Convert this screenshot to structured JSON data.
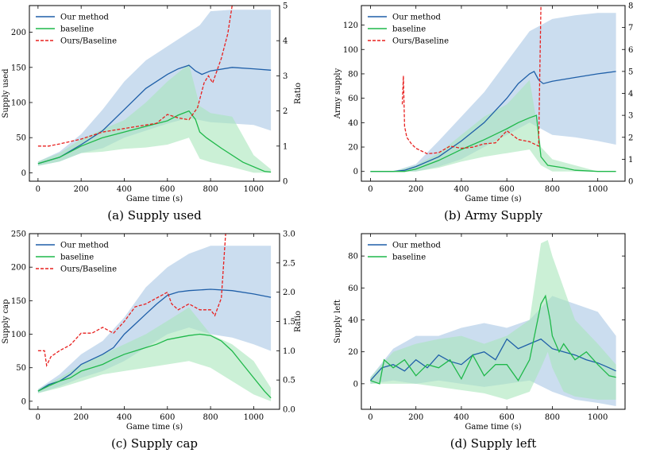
{
  "colors": {
    "ours": "#1f5fa8",
    "baseline": "#1fb84a",
    "ratio": "#e8201f",
    "ours_band": "#a9c6e4",
    "baseline_band": "#a9e6bb"
  },
  "chart_data": [
    {
      "type": "line",
      "caption": "(a) Supply used",
      "xlabel": "Game time (s)",
      "ylabel": "Supply used",
      "ylabel2": "Ratio",
      "xlim": [
        -40,
        1120
      ],
      "ylim": [
        -12,
        238
      ],
      "ylim2": [
        0,
        5
      ],
      "xticks": [
        "0",
        "200",
        "400",
        "600",
        "800",
        "1000"
      ],
      "yticks": [
        "0",
        "50",
        "100",
        "150",
        "200"
      ],
      "yticks2": [
        "0",
        "1",
        "2",
        "3",
        "4",
        "5"
      ],
      "legend": [
        "Our method",
        "baseline",
        "Ours/Baseline"
      ],
      "series": [
        {
          "name": "Our method",
          "axis": "left",
          "x": [
            0,
            100,
            200,
            300,
            400,
            500,
            600,
            650,
            700,
            730,
            760,
            800,
            900,
            1000,
            1080
          ],
          "y": [
            13,
            22,
            40,
            60,
            90,
            120,
            140,
            148,
            153,
            145,
            140,
            145,
            150,
            148,
            146
          ]
        },
        {
          "name": "baseline",
          "axis": "left",
          "x": [
            0,
            100,
            200,
            300,
            400,
            500,
            600,
            650,
            700,
            730,
            750,
            780,
            850,
            950,
            1050,
            1080
          ],
          "y": [
            13,
            22,
            38,
            50,
            58,
            66,
            74,
            82,
            88,
            76,
            58,
            50,
            35,
            15,
            2,
            1
          ]
        },
        {
          "name": "Ours/Baseline",
          "axis": "right",
          "x": [
            0,
            50,
            100,
            200,
            300,
            400,
            500,
            550,
            600,
            650,
            700,
            740,
            770,
            790,
            810,
            850,
            880,
            900
          ],
          "y": [
            1.0,
            1.0,
            1.06,
            1.2,
            1.4,
            1.5,
            1.6,
            1.65,
            1.9,
            1.8,
            1.75,
            2.1,
            2.8,
            3.0,
            2.8,
            3.5,
            4.2,
            5.0
          ]
        }
      ],
      "bands": [
        {
          "name": "Our method",
          "x": [
            0,
            100,
            200,
            300,
            400,
            500,
            600,
            700,
            750,
            800,
            900,
            1000,
            1080
          ],
          "low": [
            10,
            16,
            28,
            35,
            50,
            60,
            70,
            78,
            75,
            72,
            70,
            68,
            60
          ],
          "high": [
            16,
            30,
            55,
            90,
            130,
            160,
            180,
            200,
            210,
            230,
            232,
            232,
            232
          ]
        },
        {
          "name": "baseline",
          "x": [
            0,
            100,
            200,
            300,
            400,
            500,
            600,
            700,
            750,
            800,
            900,
            1000,
            1080
          ],
          "low": [
            10,
            16,
            28,
            30,
            34,
            36,
            40,
            50,
            20,
            15,
            8,
            0,
            0
          ],
          "high": [
            16,
            28,
            48,
            62,
            75,
            100,
            130,
            155,
            95,
            85,
            80,
            25,
            5
          ]
        }
      ]
    },
    {
      "type": "line",
      "caption": "(b) Army Supply",
      "xlabel": "Game time (s)",
      "ylabel": "Army supply",
      "ylabel2": "",
      "xlim": [
        -40,
        1120
      ],
      "ylim": [
        -8,
        136
      ],
      "ylim2": [
        0,
        8
      ],
      "xticks": [
        "0",
        "200",
        "400",
        "600",
        "800",
        "1000"
      ],
      "yticks": [
        "0",
        "20",
        "40",
        "60",
        "80",
        "100",
        "120"
      ],
      "yticks2": [
        "0",
        "1",
        "2",
        "3",
        "4",
        "5",
        "6",
        "7",
        "8"
      ],
      "legend": [
        "Our method",
        "baseline",
        "Ours/Baseline"
      ],
      "series": [
        {
          "name": "Our method",
          "axis": "left",
          "x": [
            0,
            100,
            150,
            200,
            300,
            400,
            500,
            600,
            650,
            700,
            720,
            740,
            760,
            800,
            900,
            1000,
            1080
          ],
          "y": [
            0,
            0,
            1,
            4,
            12,
            25,
            40,
            60,
            72,
            80,
            82,
            75,
            72,
            74,
            77,
            80,
            82
          ]
        },
        {
          "name": "baseline",
          "axis": "left",
          "x": [
            0,
            100,
            150,
            200,
            300,
            400,
            500,
            600,
            650,
            700,
            730,
            750,
            780,
            850,
            900,
            1000,
            1080
          ],
          "y": [
            0,
            0,
            0,
            2,
            9,
            18,
            26,
            35,
            40,
            44,
            46,
            12,
            5,
            3,
            1,
            0,
            0
          ]
        },
        {
          "name": "Ours/Baseline",
          "axis": "right",
          "x": [
            140,
            145,
            150,
            160,
            180,
            200,
            250,
            300,
            350,
            400,
            450,
            500,
            550,
            600,
            650,
            700,
            740,
            745,
            750
          ],
          "y": [
            3.5,
            4.8,
            2.5,
            2.0,
            1.7,
            1.5,
            1.25,
            1.3,
            1.6,
            1.5,
            1.55,
            1.7,
            1.75,
            2.3,
            1.9,
            1.8,
            1.6,
            5.0,
            8.0
          ]
        }
      ],
      "bands": [
        {
          "name": "Our method",
          "x": [
            0,
            100,
            200,
            300,
            400,
            500,
            600,
            700,
            750,
            800,
            900,
            1000,
            1080
          ],
          "low": [
            0,
            0,
            0,
            4,
            10,
            20,
            30,
            40,
            35,
            30,
            28,
            25,
            22
          ],
          "high": [
            0,
            0,
            6,
            25,
            45,
            65,
            90,
            115,
            120,
            125,
            128,
            130,
            130
          ]
        },
        {
          "name": "baseline",
          "x": [
            0,
            100,
            200,
            300,
            400,
            500,
            600,
            700,
            750,
            800,
            900,
            1000,
            1080
          ],
          "low": [
            0,
            0,
            0,
            3,
            8,
            12,
            15,
            18,
            5,
            0,
            0,
            0,
            0
          ],
          "high": [
            0,
            0,
            5,
            15,
            30,
            45,
            55,
            75,
            20,
            10,
            5,
            0,
            0
          ]
        }
      ]
    },
    {
      "type": "line",
      "caption": "(c) Supply cap",
      "xlabel": "Game time (s)",
      "ylabel": "Supply cap",
      "ylabel2": "Ratio",
      "xlim": [
        -40,
        1120
      ],
      "ylim": [
        -12,
        250
      ],
      "ylim2": [
        0,
        3
      ],
      "xticks": [
        "0",
        "200",
        "400",
        "600",
        "800",
        "1000"
      ],
      "yticks": [
        "0",
        "50",
        "100",
        "150",
        "200",
        "250"
      ],
      "yticks2": [
        "0.0",
        "0.5",
        "1.0",
        "1.5",
        "2.0",
        "2.5",
        "3.0"
      ],
      "legend": [
        "Our method",
        "baseline",
        "Ours/Baseline"
      ],
      "series": [
        {
          "name": "Our method",
          "axis": "left",
          "x": [
            0,
            50,
            100,
            150,
            200,
            300,
            350,
            400,
            450,
            500,
            550,
            600,
            650,
            700,
            800,
            900,
            1000,
            1080
          ],
          "y": [
            15,
            25,
            30,
            40,
            55,
            70,
            80,
            100,
            115,
            130,
            145,
            158,
            163,
            165,
            167,
            165,
            160,
            155
          ]
        },
        {
          "name": "baseline",
          "axis": "left",
          "x": [
            0,
            50,
            100,
            150,
            200,
            250,
            300,
            350,
            400,
            450,
            500,
            550,
            600,
            650,
            700,
            750,
            800,
            850,
            900,
            950,
            1000,
            1050,
            1080
          ],
          "y": [
            15,
            23,
            30,
            35,
            45,
            50,
            55,
            63,
            70,
            75,
            80,
            85,
            92,
            95,
            98,
            100,
            98,
            90,
            75,
            55,
            35,
            15,
            5
          ]
        },
        {
          "name": "Ours/Baseline",
          "axis": "right",
          "x": [
            0,
            30,
            40,
            60,
            100,
            150,
            200,
            250,
            300,
            350,
            400,
            450,
            500,
            550,
            600,
            620,
            650,
            700,
            750,
            800,
            820,
            850,
            870
          ],
          "y": [
            1.0,
            1.0,
            0.75,
            0.9,
            1.0,
            1.1,
            1.3,
            1.3,
            1.4,
            1.3,
            1.5,
            1.75,
            1.8,
            1.9,
            2.0,
            1.8,
            1.7,
            1.8,
            1.7,
            1.7,
            1.6,
            1.9,
            3.0
          ]
        }
      ],
      "bands": [
        {
          "name": "Our method",
          "x": [
            0,
            100,
            200,
            300,
            400,
            500,
            600,
            700,
            800,
            900,
            1000,
            1080
          ],
          "low": [
            12,
            22,
            35,
            45,
            60,
            80,
            100,
            110,
            100,
            95,
            85,
            75
          ],
          "high": [
            18,
            40,
            70,
            90,
            125,
            170,
            200,
            220,
            232,
            232,
            232,
            232
          ]
        },
        {
          "name": "baseline",
          "x": [
            0,
            100,
            200,
            300,
            400,
            500,
            600,
            700,
            800,
            900,
            1000,
            1080
          ],
          "low": [
            12,
            20,
            30,
            40,
            45,
            50,
            55,
            60,
            50,
            30,
            10,
            0
          ],
          "high": [
            18,
            35,
            55,
            70,
            85,
            100,
            120,
            140,
            100,
            85,
            60,
            20
          ]
        }
      ]
    },
    {
      "type": "line",
      "caption": "(d) Supply left",
      "xlabel": "Game time (s)",
      "ylabel": "Supply left",
      "ylabel2": "",
      "xlim": [
        -40,
        1120
      ],
      "ylim": [
        -16,
        94
      ],
      "xticks": [
        "0",
        "200",
        "400",
        "600",
        "800",
        "1000"
      ],
      "yticks": [
        "0",
        "20",
        "40",
        "60",
        "80"
      ],
      "legend": [
        "Our method",
        "baseline"
      ],
      "series": [
        {
          "name": "Our method",
          "axis": "left",
          "x": [
            0,
            50,
            100,
            150,
            200,
            250,
            300,
            350,
            400,
            450,
            500,
            550,
            600,
            650,
            700,
            750,
            800,
            850,
            900,
            950,
            1000,
            1050,
            1080
          ],
          "y": [
            2,
            10,
            12,
            8,
            15,
            10,
            18,
            14,
            12,
            18,
            20,
            15,
            28,
            22,
            25,
            28,
            22,
            20,
            18,
            15,
            13,
            10,
            8
          ]
        },
        {
          "name": "baseline",
          "axis": "left",
          "x": [
            0,
            40,
            60,
            100,
            150,
            200,
            250,
            300,
            350,
            400,
            450,
            500,
            550,
            600,
            650,
            700,
            750,
            770,
            790,
            800,
            830,
            850,
            900,
            950,
            1000,
            1050,
            1080
          ],
          "y": [
            2,
            0,
            15,
            10,
            15,
            5,
            12,
            10,
            15,
            3,
            18,
            5,
            12,
            12,
            2,
            15,
            50,
            55,
            40,
            30,
            20,
            25,
            15,
            20,
            12,
            5,
            4
          ]
        }
      ],
      "bands": [
        {
          "name": "Our method",
          "x": [
            0,
            100,
            200,
            300,
            400,
            500,
            600,
            700,
            800,
            900,
            1000,
            1080
          ],
          "low": [
            0,
            2,
            0,
            2,
            0,
            -2,
            0,
            2,
            -5,
            -10,
            -12,
            -14
          ],
          "high": [
            4,
            22,
            30,
            30,
            35,
            38,
            35,
            40,
            55,
            50,
            45,
            30
          ]
        },
        {
          "name": "baseline",
          "x": [
            0,
            100,
            200,
            300,
            400,
            500,
            600,
            700,
            750,
            780,
            800,
            850,
            900,
            1000,
            1080
          ],
          "low": [
            0,
            0,
            0,
            -2,
            -4,
            -6,
            -10,
            -5,
            10,
            20,
            10,
            -5,
            -8,
            -10,
            -10
          ],
          "high": [
            4,
            20,
            25,
            28,
            30,
            25,
            30,
            40,
            88,
            90,
            80,
            60,
            40,
            25,
            12
          ]
        }
      ]
    }
  ]
}
